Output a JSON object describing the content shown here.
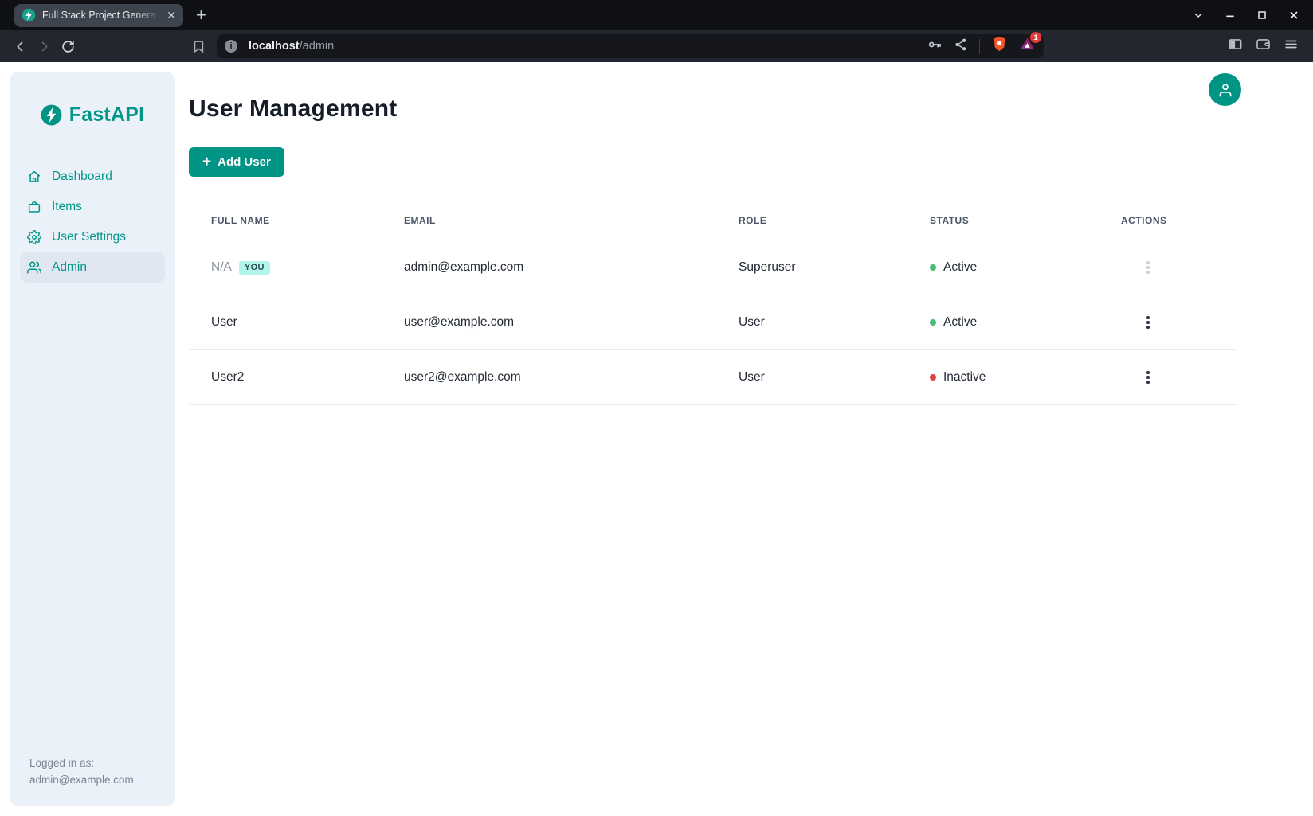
{
  "browser": {
    "tab_title": "Full Stack Project Genera",
    "tab_close": "✕",
    "new_tab_button": "+",
    "url_host": "localhost",
    "url_path": "/admin",
    "rewards_count": "1",
    "info_glyph": "i"
  },
  "sidebar": {
    "brand": "FastAPI",
    "items": [
      {
        "label": "Dashboard",
        "icon": "home-icon",
        "active": false
      },
      {
        "label": "Items",
        "icon": "briefcase-icon",
        "active": false
      },
      {
        "label": "User Settings",
        "icon": "gear-icon",
        "active": false
      },
      {
        "label": "Admin",
        "icon": "users-icon",
        "active": true
      }
    ],
    "footer_label": "Logged in as:",
    "footer_email": "admin@example.com"
  },
  "main": {
    "title": "User Management",
    "add_user_button": "Add User",
    "table": {
      "columns": [
        "Full Name",
        "Email",
        "Role",
        "Status",
        "Actions"
      ],
      "rows": [
        {
          "full_name": "N/A",
          "name_muted": true,
          "badge": "YOU",
          "email": "admin@example.com",
          "role": "Superuser",
          "status": "Active",
          "status_color": "#48BB78",
          "actions_muted": true
        },
        {
          "full_name": "User",
          "name_muted": false,
          "badge": null,
          "email": "user@example.com",
          "role": "User",
          "status": "Active",
          "status_color": "#48BB78",
          "actions_muted": false
        },
        {
          "full_name": "User2",
          "name_muted": false,
          "badge": null,
          "email": "user2@example.com",
          "role": "User",
          "status": "Inactive",
          "status_color": "#E53E3E",
          "actions_muted": false
        }
      ]
    }
  },
  "colors": {
    "brand_teal": "#009485",
    "badge_bg": "#B2F5EA",
    "badge_text": "#234E52",
    "active_green": "#48BB78",
    "inactive_red": "#E53E3E"
  }
}
